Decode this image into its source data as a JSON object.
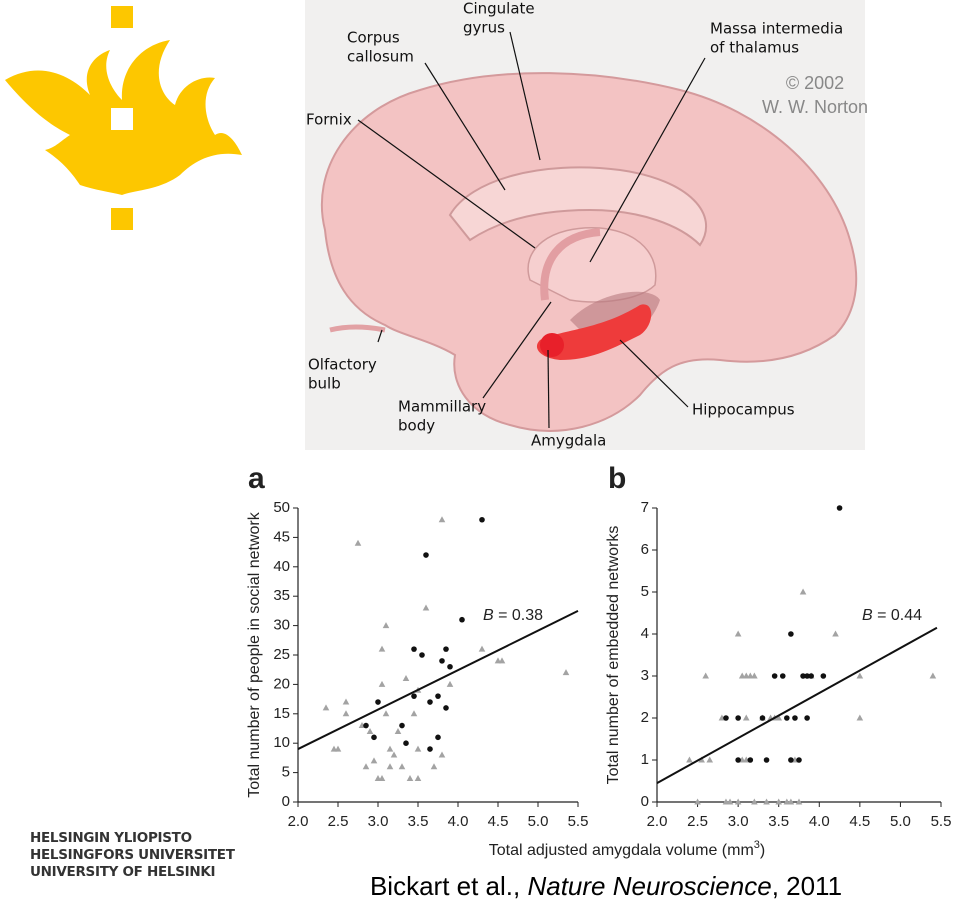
{
  "diagram": {
    "labels": [
      {
        "lines": [
          "Corpus",
          "callosum"
        ]
      },
      {
        "lines": [
          "Cingulate",
          "gyrus"
        ]
      },
      {
        "lines": [
          "Massa intermedia",
          "of thalamus"
        ]
      },
      {
        "lines": [
          "Fornix"
        ]
      },
      {
        "lines": [
          "Olfactory",
          "bulb"
        ]
      },
      {
        "lines": [
          "Mammillary",
          "body"
        ]
      },
      {
        "lines": [
          "Amygdala"
        ]
      },
      {
        "lines": [
          "Hippocampus"
        ]
      }
    ],
    "copyright": [
      "© 2002",
      "W. W. Norton"
    ]
  },
  "university": [
    "HELSINGIN YLIOPISTO",
    "HELSINGFORS UNIVERSITET",
    "UNIVERSITY OF HELSINKI"
  ],
  "citation": {
    "before": "Bickart et al., ",
    "journal": "Nature Neuroscience",
    "after": ", 2011"
  },
  "xlabel": {
    "text": "Total adjusted amygdala volume (mm",
    "superscript": "3",
    "end": ")"
  },
  "chart_data": [
    {
      "type": "scatter",
      "panel": "a",
      "ylabel": "Total number of people in social network",
      "xlim": [
        2.0,
        5.5
      ],
      "xticks": [
        {
          "value": 2.0,
          "label": "2.0"
        },
        2.5,
        {
          "value": 3.0,
          "label": "3.0"
        },
        3.5,
        {
          "value": 4.0,
          "label": "4.0"
        },
        4.5,
        {
          "value": 5.0,
          "label": "5.0"
        },
        5.5
      ],
      "ylim": [
        0,
        50
      ],
      "yticks": [
        0,
        5,
        10,
        15,
        20,
        25,
        30,
        35,
        40,
        45,
        50
      ],
      "annotation": {
        "symbol": "B",
        "text": " = 0.38"
      },
      "fit_line": {
        "x": [
          2.0,
          5.5
        ],
        "y": [
          9,
          32.5
        ]
      },
      "series": [
        {
          "marker": "triangle",
          "color": "#a3a3a3",
          "x": [
            2.35,
            2.45,
            2.5,
            2.6,
            2.6,
            2.75,
            2.8,
            2.85,
            2.9,
            2.95,
            3.0,
            3.05,
            3.05,
            3.1,
            3.1,
            3.15,
            3.15,
            3.2,
            3.25,
            3.35,
            3.4,
            3.45,
            3.5,
            3.5,
            3.6,
            3.7,
            3.8,
            3.8,
            3.9,
            4.3,
            4.5,
            4.55,
            5.35,
            3.5,
            3.3,
            3.05
          ],
          "y": [
            16,
            9,
            9,
            17,
            15,
            44,
            13,
            6,
            12,
            7,
            4,
            20,
            26,
            30,
            15,
            9,
            6,
            8,
            12,
            21,
            4,
            15,
            9,
            4,
            33,
            6,
            48,
            8,
            20,
            26,
            24,
            24,
            22,
            19,
            6,
            4
          ]
        },
        {
          "marker": "circle",
          "color": "#111111",
          "x": [
            2.85,
            2.95,
            3.0,
            3.3,
            3.35,
            3.45,
            3.45,
            3.55,
            3.6,
            3.65,
            3.65,
            3.75,
            3.75,
            3.8,
            3.85,
            3.85,
            3.9,
            4.05,
            4.3
          ],
          "y": [
            13,
            11,
            17,
            13,
            10,
            26,
            18,
            25,
            42,
            17,
            9,
            11,
            18,
            24,
            26,
            16,
            23,
            31,
            48
          ]
        }
      ]
    },
    {
      "type": "scatter",
      "panel": "b",
      "ylabel": "Total number of embedded networks",
      "xlim": [
        2.0,
        5.5
      ],
      "xticks": [
        {
          "value": 2.0,
          "label": "2.0"
        },
        2.5,
        {
          "value": 3.0,
          "label": "3.0"
        },
        3.5,
        {
          "value": 4.0,
          "label": "4.0"
        },
        4.5,
        {
          "value": 5.0,
          "label": "5.0"
        },
        5.5
      ],
      "ylim": [
        0,
        7
      ],
      "yticks": [
        0,
        1,
        2,
        3,
        4,
        5,
        6,
        7
      ],
      "annotation": {
        "symbol": "B",
        "text": " = 0.44"
      },
      "fit_line": {
        "x": [
          2.0,
          5.45
        ],
        "y": [
          0.45,
          4.15
        ]
      },
      "series": [
        {
          "marker": "triangle",
          "color": "#a3a3a3",
          "x": [
            2.4,
            2.5,
            2.55,
            2.6,
            2.65,
            2.8,
            2.85,
            2.9,
            3.0,
            3.0,
            3.05,
            3.1,
            3.15,
            3.2,
            3.05,
            3.1,
            3.1,
            3.2,
            3.35,
            3.4,
            3.45,
            3.5,
            3.6,
            3.65,
            3.7,
            3.75,
            3.8,
            3.9,
            4.2,
            4.5,
            4.5,
            5.4,
            3.3,
            3.5
          ],
          "y": [
            1,
            0,
            1,
            3,
            1,
            2,
            0,
            0,
            0,
            4,
            3,
            3,
            3,
            3,
            1,
            1,
            2,
            0,
            0,
            2,
            2,
            0,
            0,
            0,
            1,
            0,
            5,
            3,
            4,
            3,
            2,
            3,
            2,
            2
          ]
        },
        {
          "marker": "circle",
          "color": "#111111",
          "x": [
            2.85,
            3.0,
            3.0,
            3.15,
            3.3,
            3.35,
            3.45,
            3.55,
            3.6,
            3.65,
            3.65,
            3.7,
            3.75,
            3.8,
            3.85,
            3.9,
            3.85,
            4.05,
            4.25
          ],
          "y": [
            2,
            2,
            1,
            1,
            2,
            1,
            3,
            3,
            2,
            4,
            1,
            2,
            1,
            3,
            3,
            3,
            2,
            3,
            7
          ]
        }
      ]
    }
  ]
}
